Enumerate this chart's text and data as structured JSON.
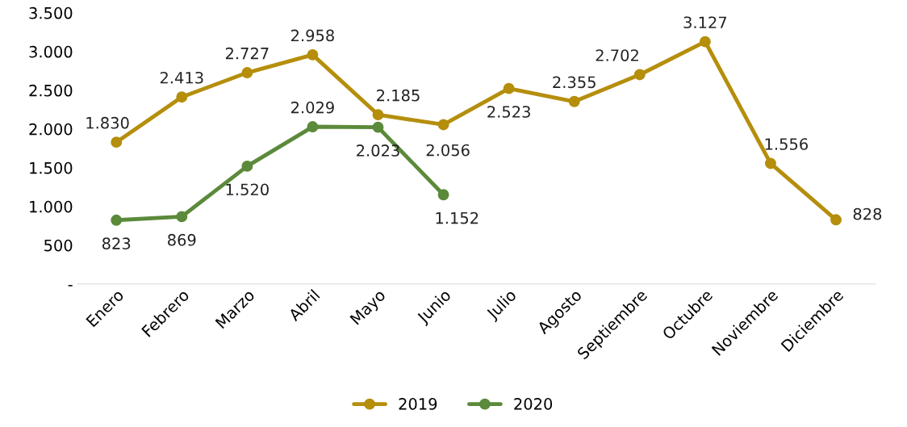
{
  "chart_data": {
    "type": "line",
    "categories": [
      "Enero",
      "Febrero",
      "Marzo",
      "Abril",
      "Mayo",
      "Junio",
      "Julio",
      "Agosto",
      "Septiembre",
      "Octubre",
      "Noviembre",
      "Diciembre"
    ],
    "series": [
      {
        "name": "2019",
        "color": "#b58e0c",
        "values": [
          1830,
          2413,
          2727,
          2958,
          2185,
          2056,
          2523,
          2355,
          2702,
          3127,
          1556,
          828
        ],
        "value_labels": [
          "1.830",
          "2.413",
          "2.727",
          "2.958",
          "2.185",
          "2.056",
          "2.523",
          "2.355",
          "2.702",
          "3.127",
          "1.556",
          "828"
        ]
      },
      {
        "name": "2020",
        "color": "#5b8a3a",
        "values": [
          823,
          869,
          1520,
          2029,
          2023,
          1152,
          null,
          null,
          null,
          null,
          null,
          null
        ],
        "value_labels": [
          "823",
          "869",
          "1.520",
          "2.029",
          "2.023",
          "1.152",
          null,
          null,
          null,
          null,
          null,
          null
        ]
      }
    ],
    "ylim": [
      0,
      3500
    ],
    "yticks": [
      {
        "value": 0,
        "label": "-"
      },
      500,
      {
        "value": 1000,
        "label": "1.000"
      },
      {
        "value": 1500,
        "label": "1.500"
      },
      {
        "value": 2000,
        "label": "2.000"
      },
      {
        "value": 2500,
        "label": "2.500"
      },
      {
        "value": 3000,
        "label": "3.000"
      },
      {
        "value": 3500,
        "label": "3.500"
      }
    ],
    "grid": false,
    "legend": "bottom",
    "marker": "circle",
    "line_style": "solid"
  }
}
